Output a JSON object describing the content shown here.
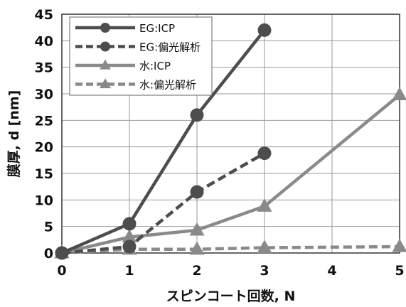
{
  "chart_data": {
    "type": "line",
    "xlabel": "スピンコート回数, N",
    "ylabel": "膜厚, d [nm]",
    "xlim": [
      0,
      5
    ],
    "ylim": [
      0,
      45
    ],
    "xticks": [
      "0",
      "1",
      "2",
      "3",
      "4",
      "5"
    ],
    "yticks": [
      "0",
      "5",
      "10",
      "15",
      "20",
      "25",
      "30",
      "35",
      "40",
      "45"
    ],
    "grid": true,
    "legend_position": "top-left",
    "series": [
      {
        "name": "EG:ICP",
        "color": "#4d4d4d",
        "dashed": false,
        "marker": "circle",
        "x": [
          0,
          1,
          2,
          3
        ],
        "y": [
          0,
          5.5,
          26,
          42
        ]
      },
      {
        "name": "EG:偏光解析",
        "color": "#4d4d4d",
        "dashed": true,
        "marker": "circle",
        "x": [
          0,
          1,
          2,
          3
        ],
        "y": [
          0,
          1.2,
          11.5,
          18.8
        ]
      },
      {
        "name": "水:ICP",
        "color": "#8a8a8a",
        "dashed": false,
        "marker": "triangle",
        "x": [
          0,
          1,
          2,
          3,
          5
        ],
        "y": [
          0,
          3,
          4.3,
          8.8,
          29.8
        ]
      },
      {
        "name": "水:偏光解析",
        "color": "#8a8a8a",
        "dashed": true,
        "marker": "triangle",
        "x": [
          0,
          1,
          2,
          3,
          5
        ],
        "y": [
          0,
          0.7,
          0.7,
          1,
          1.2
        ]
      }
    ]
  }
}
